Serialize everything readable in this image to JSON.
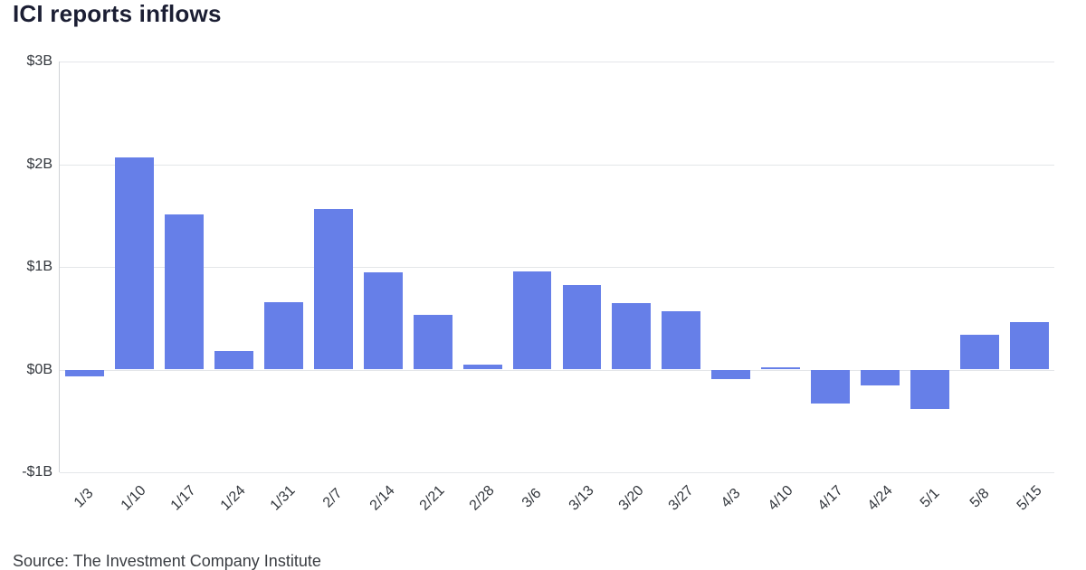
{
  "chart_data": {
    "type": "bar",
    "title": "ICI reports inflows",
    "source": "Source: The Investment Company Institute",
    "categories": [
      "1/3",
      "1/10",
      "1/17",
      "1/24",
      "1/31",
      "2/7",
      "2/14",
      "2/21",
      "2/28",
      "3/6",
      "3/13",
      "3/20",
      "3/27",
      "4/3",
      "4/10",
      "4/17",
      "4/24",
      "5/1",
      "5/8",
      "5/15"
    ],
    "values": [
      -0.07,
      2.07,
      1.51,
      0.18,
      0.66,
      1.56,
      0.95,
      0.53,
      0.05,
      0.96,
      0.82,
      0.65,
      0.57,
      -0.09,
      0.02,
      -0.33,
      -0.15,
      -0.38,
      0.34,
      0.46
    ],
    "ylim": [
      -1,
      3
    ],
    "yticks": [
      {
        "value": 3,
        "label": "$3B"
      },
      {
        "value": 2,
        "label": "$2B"
      },
      {
        "value": 1,
        "label": "$1B"
      },
      {
        "value": 0,
        "label": "$0B"
      },
      {
        "value": -1,
        "label": "-$1B"
      }
    ],
    "bar_color": "#667fe8",
    "grid_color": "#e4e6e9",
    "axis_line_color": "#cfd2d6",
    "title_color": "#1b1e33",
    "tick_label_color": "#33373d",
    "legend": "none",
    "grid": "horizontal"
  }
}
